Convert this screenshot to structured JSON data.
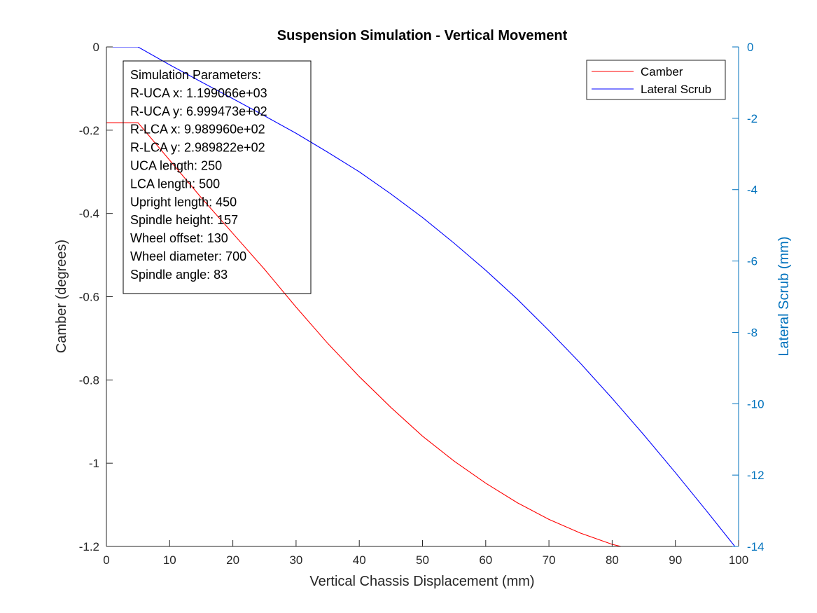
{
  "chart_data": {
    "type": "line",
    "title": "Suspension Simulation - Vertical Movement",
    "xlabel": "Vertical Chassis Displacement (mm)",
    "ylabel_left": "Camber (degrees)",
    "ylabel_right": "Lateral Scrub (mm)",
    "xlim": [
      0,
      100
    ],
    "ylim_left": [
      -1.2,
      0
    ],
    "ylim_right": [
      -14,
      0
    ],
    "x_ticks": [
      "0",
      "10",
      "20",
      "30",
      "40",
      "50",
      "60",
      "70",
      "80",
      "90",
      "100"
    ],
    "y_left_ticks": [
      "0",
      "-0.2",
      "-0.4",
      "-0.6",
      "-0.8",
      "-1",
      "-1.2"
    ],
    "y_right_ticks": [
      "0",
      "-2",
      "-4",
      "-6",
      "-8",
      "-10",
      "-12",
      "-14"
    ],
    "grid": false,
    "legend_position": "top-right",
    "colors": {
      "camber": "#ff0000",
      "scrub": "#0000ff",
      "right_axis": "#0072bd",
      "axis": "#262626"
    },
    "series": [
      {
        "name": "Camber",
        "axis": "left",
        "x": [
          0,
          5,
          10,
          15,
          20,
          25,
          30,
          35,
          40,
          45,
          50,
          55,
          60,
          65,
          70,
          75,
          80,
          85,
          90,
          95,
          100
        ],
        "values": [
          -0.182,
          -0.182,
          -0.272,
          -0.362,
          -0.448,
          -0.534,
          -0.625,
          -0.712,
          -0.792,
          -0.866,
          -0.935,
          -0.995,
          -1.048,
          -1.095,
          -1.135,
          -1.168,
          -1.195,
          -1.213,
          -1.225,
          -1.23,
          -1.228
        ]
      },
      {
        "name": "Lateral Scrub",
        "axis": "right",
        "x": [
          0,
          5,
          10,
          15,
          20,
          25,
          30,
          35,
          40,
          45,
          50,
          55,
          60,
          65,
          70,
          75,
          80,
          85,
          90,
          95,
          100
        ],
        "values": [
          0,
          0,
          -0.5,
          -0.98,
          -1.45,
          -1.93,
          -2.42,
          -2.95,
          -3.5,
          -4.12,
          -4.78,
          -5.5,
          -6.26,
          -7.07,
          -7.95,
          -8.87,
          -9.85,
          -10.87,
          -11.93,
          -13.02,
          -14.13
        ]
      }
    ],
    "annotation_lines": [
      "Simulation Parameters:",
      "R-UCA x: 1.199066e+03",
      "R-UCA y: 6.999473e+02",
      "R-LCA x: 9.989960e+02",
      "R-LCA y: 2.989822e+02",
      "UCA length: 250",
      "LCA length: 500",
      "Upright length: 450",
      "Spindle height: 157",
      "Wheel offset: 130",
      "Wheel diameter: 700",
      "Spindle angle: 83"
    ]
  }
}
